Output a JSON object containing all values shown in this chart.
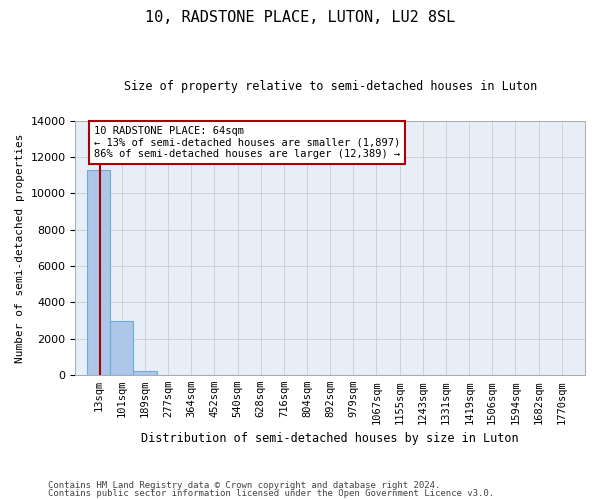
{
  "title": "10, RADSTONE PLACE, LUTON, LU2 8SL",
  "subtitle": "Size of property relative to semi-detached houses in Luton",
  "xlabel": "Distribution of semi-detached houses by size in Luton",
  "ylabel": "Number of semi-detached properties",
  "property_size": 64,
  "annotation_line1": "10 RADSTONE PLACE: 64sqm",
  "annotation_line2": "← 13% of semi-detached houses are smaller (1,897)",
  "annotation_line3": "86% of semi-detached houses are larger (12,389) →",
  "bar_edges": [
    13,
    101,
    189,
    277,
    364,
    452,
    540,
    628,
    716,
    804,
    892,
    979,
    1067,
    1155,
    1243,
    1331,
    1419,
    1506,
    1594,
    1682,
    1770
  ],
  "bar_heights": [
    11300,
    3000,
    200,
    20,
    5,
    2,
    1,
    1,
    0,
    0,
    0,
    0,
    0,
    0,
    0,
    0,
    0,
    0,
    0,
    0
  ],
  "bar_color": "#aec6e8",
  "bar_edgecolor": "#6baed6",
  "grid_color": "#cccccc",
  "bg_color": "#e8eef8",
  "vline_color": "#aa0000",
  "annotation_box_color": "#aa0000",
  "ylim": [
    0,
    14000
  ],
  "yticks": [
    0,
    2000,
    4000,
    6000,
    8000,
    10000,
    12000,
    14000
  ],
  "footnote1": "Contains HM Land Registry data © Crown copyright and database right 2024.",
  "footnote2": "Contains public sector information licensed under the Open Government Licence v3.0."
}
